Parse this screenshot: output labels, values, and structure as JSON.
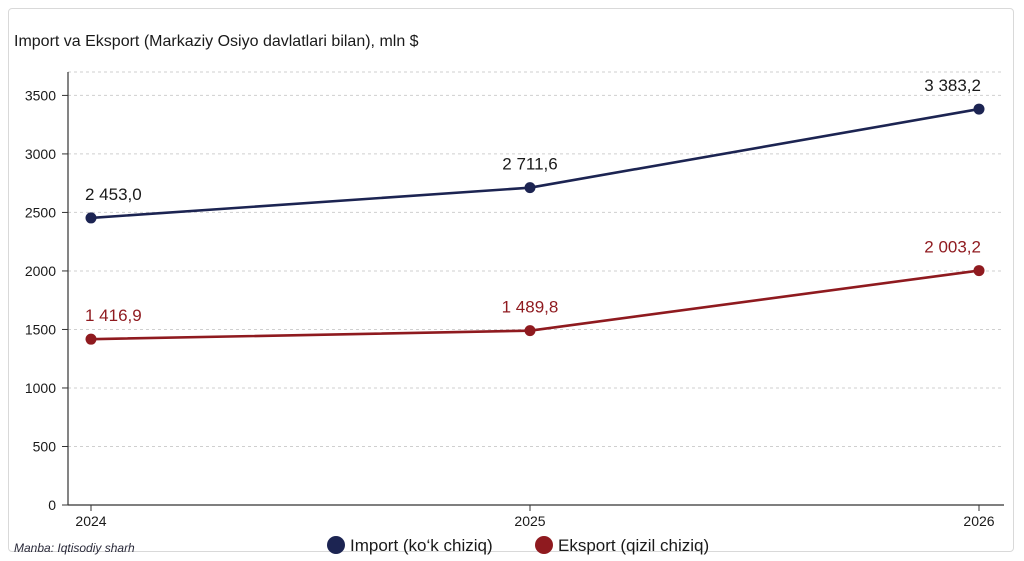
{
  "chart_data": {
    "type": "line",
    "title": "Import va Eksport (Markaziy Osiyo davlatlari bilan), mln $",
    "x": [
      "2024",
      "2025",
      "2026"
    ],
    "ylim": [
      0,
      3700
    ],
    "yticks": [
      0,
      500,
      1000,
      1500,
      2000,
      2500,
      3000,
      3500
    ],
    "grid": true,
    "legend_position": "bottom-center",
    "source": "Manba: Iqtisodiy sharh",
    "series": [
      {
        "name": "Import (ko‘k chiziq)",
        "color": "#1c2452",
        "values": [
          2453.0,
          2711.6,
          3383.2
        ],
        "labels": [
          "2 453,0",
          "2 711,6",
          "3 383,2"
        ]
      },
      {
        "name": "Eksport (qizil chiziq)",
        "color": "#8f1a1f",
        "values": [
          1416.9,
          1489.8,
          2003.2
        ],
        "labels": [
          "1 416,9",
          "1 489,8",
          "2 003,2"
        ]
      }
    ]
  }
}
